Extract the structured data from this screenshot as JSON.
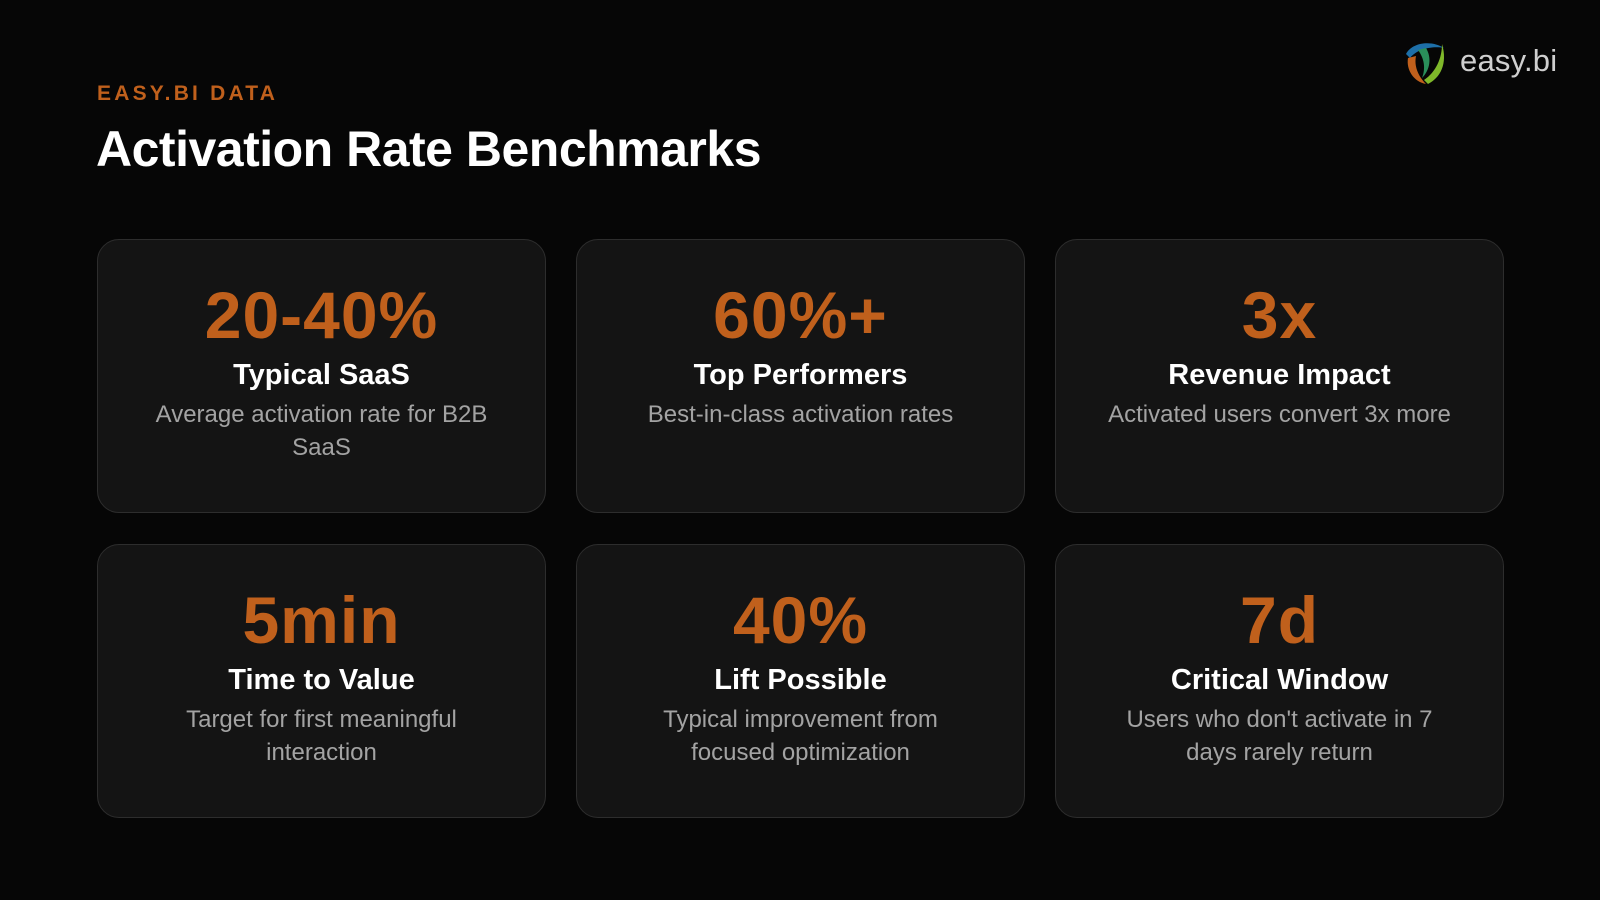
{
  "brand": {
    "logo_text": "easy.bi",
    "logo_icon": "easybi-swirl-logo-icon",
    "colors": {
      "accent": "#c0601c",
      "background": "#060606",
      "card": "#141414"
    }
  },
  "header": {
    "eyebrow": "EASY.BI DATA",
    "title": "Activation Rate Benchmarks"
  },
  "cards": [
    {
      "value": "20-40%",
      "label": "Typical SaaS",
      "description": "Average activation rate for B2B SaaS"
    },
    {
      "value": "60%+",
      "label": "Top Performers",
      "description": "Best-in-class activation rates"
    },
    {
      "value": "3x",
      "label": "Revenue Impact",
      "description": "Activated users convert 3x more"
    },
    {
      "value": "5min",
      "label": "Time to Value",
      "description": "Target for first meaningful interaction"
    },
    {
      "value": "40%",
      "label": "Lift Possible",
      "description": "Typical improvement from focused optimization"
    },
    {
      "value": "7d",
      "label": "Critical Window",
      "description": "Users who don't activate in 7 days rarely return"
    }
  ]
}
